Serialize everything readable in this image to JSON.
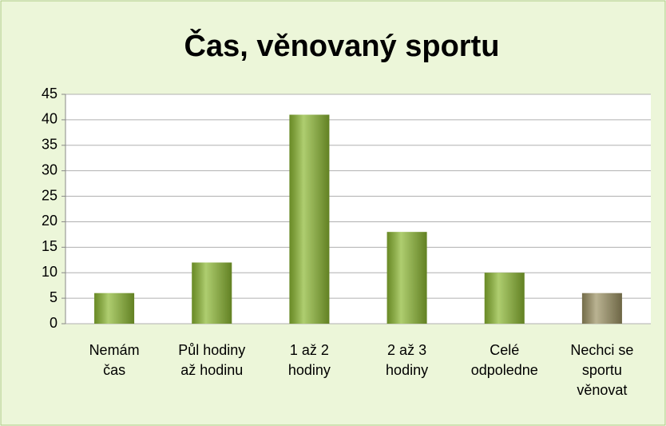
{
  "chart_data": {
    "type": "bar",
    "title": "Čas, věnovaný sportu",
    "categories": [
      "Nemám\nčas",
      "Půl hodiny\naž hodinu",
      "1 až 2\nhodiny",
      "2 až 3\nhodiny",
      "Celé\nodpoledne",
      "Nechci se\nsportu\nvěnovat"
    ],
    "values": [
      6,
      12,
      41,
      18,
      10,
      6
    ],
    "colors": [
      "#8cb832",
      "#8cb832",
      "#8cb832",
      "#8cb832",
      "#8cb832",
      "#9c9263"
    ],
    "ylim": [
      0,
      45
    ],
    "yticks": [
      0,
      5,
      10,
      15,
      20,
      25,
      30,
      35,
      40,
      45
    ],
    "grid": true
  }
}
